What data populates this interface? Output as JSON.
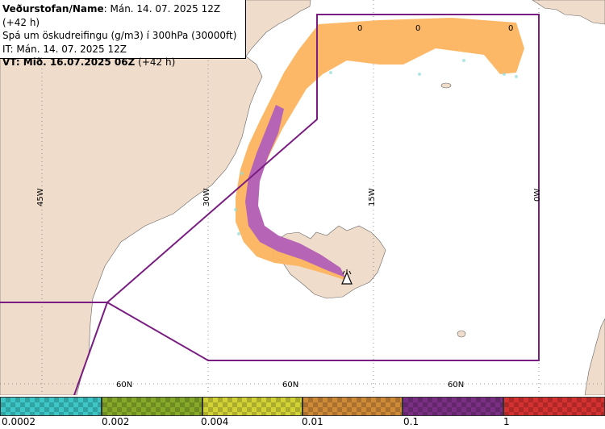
{
  "info": {
    "line1_bold": "Veðurstofan/Name",
    "line1_rest": ": Mán. 14. 07. 2025 12Z (+42 h)",
    "line2": "Spá um öskudreifingu (g/m3) í 300hPa (30000ft)",
    "line3": "IT: Mán. 14. 07. 2025 12Z",
    "line4_bold": "VT: Mið. 16.07.2025 06Z",
    "line4_rest": " (+42 h)"
  },
  "map": {
    "longitude_labels": [
      "45W",
      "30W",
      "15W",
      "0W"
    ],
    "latitude_labels": [
      "60N",
      "60N",
      "60N"
    ],
    "value_labels": [
      "0",
      "0",
      "0"
    ],
    "colors": {
      "land": "#f0dccb",
      "sea": "#ffffff",
      "ash_low": "#fcb45f",
      "ash_high": "#b564b6",
      "fir_boundary": "#7a1d82"
    },
    "volcano_icon": "triangle-volcano-icon"
  },
  "legend": {
    "labels": [
      "0.0002",
      "0.002",
      "0.004",
      "0.01",
      "0.1",
      "1"
    ],
    "colors": [
      "#3cc6c6",
      "#86a92a",
      "#d2d236",
      "#cf8a38",
      "#7b2f84",
      "#d63131"
    ]
  }
}
